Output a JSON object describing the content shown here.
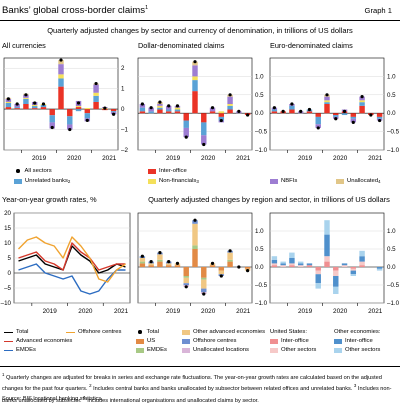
{
  "header": {
    "title": "Banks’ global cross-border claims",
    "title_note": "1",
    "graph_label": "Graph 1"
  },
  "top_subtitle": "Quarterly adjusted changes by sector and currency of denomination, in trillions of US dollars",
  "bottom_subtitle": "Quarterly adjusted changes by region and sector, in trillions of US dollars",
  "colors": {
    "inter_office": "#ea3326",
    "unrelated_banks": "#5aa2d6",
    "non_financials": "#f4e05a",
    "nbfis": "#9d7dd2",
    "unallocated": "#e1c688",
    "total_line": "#000000",
    "advanced_line": "#d4382b",
    "emde_line": "#2c6cc1",
    "offshore_line": "#f0a330",
    "us": "#e28a45",
    "emdes_bar": "#a8c985",
    "other_advanced": "#f0c783",
    "offshore_bar": "#6e8fd1",
    "unalloc_loc": "#d9b5d8",
    "us_interoffice": "#f08f91",
    "us_other": "#f6c9c8",
    "oth_interoffice": "#4f90cc",
    "oth_other": "#a9d3ed"
  },
  "footnotes": [
    {
      "marker": "1",
      "text": "Quarterly changes are adjusted for breaks in series and exchange rate fluctuations. The year-on-year growth rates are calculated based on the adjusted changes for the past four quarters."
    },
    {
      "marker": "2",
      "text": "Includes central banks and banks unallocated by subsector between related offices and unrelated banks."
    },
    {
      "marker": "3",
      "text": "Includes non-banks unallocated by subsector."
    },
    {
      "marker": "4",
      "text": "Includes international organisations and unallocated claims by sector."
    }
  ],
  "source": "Source: BIS locational banking statistics.",
  "top_legend": [
    {
      "key": "all_sectors",
      "label": "All sectors",
      "note": "",
      "kind": "dot",
      "color": "#000000"
    },
    {
      "key": "inter_office",
      "label": "Inter-office",
      "note": "",
      "kind": "swatch",
      "color": "#ea3326"
    },
    {
      "key": "unrelated",
      "label": "Unrelated banks",
      "note": "2",
      "kind": "swatch",
      "color": "#5aa2d6"
    },
    {
      "key": "nonfin",
      "label": "Non-financials",
      "note": "3",
      "kind": "swatch",
      "color": "#f4e05a"
    },
    {
      "key": "nbfis",
      "label": "NBFIs",
      "note": "",
      "kind": "swatch",
      "color": "#9d7dd2"
    },
    {
      "key": "unalloc",
      "label": "Unallocated",
      "note": "4",
      "kind": "swatch",
      "color": "#e1c688"
    }
  ],
  "bl_legend": [
    {
      "label": "Total",
      "kind": "line",
      "color": "#000000"
    },
    {
      "label": "Offshore centres",
      "kind": "line",
      "color": "#f0a330"
    },
    {
      "label": "Advanced economies",
      "kind": "line",
      "color": "#d4382b"
    },
    {
      "label": "EMDEs",
      "kind": "line",
      "color": "#2c6cc1"
    }
  ],
  "bm_legend": [
    {
      "label": "Total",
      "kind": "dot",
      "color": "#000000"
    },
    {
      "label": "Other advanced economies",
      "kind": "swatch",
      "color": "#f0c783"
    },
    {
      "label": "US",
      "kind": "swatch",
      "color": "#e28a45"
    },
    {
      "label": "Offshore centres",
      "kind": "swatch",
      "color": "#6e8fd1"
    },
    {
      "label": "EMDEs",
      "kind": "swatch",
      "color": "#a8c985"
    },
    {
      "label": "Unallocated locations",
      "kind": "swatch",
      "color": "#d9b5d8"
    }
  ],
  "br_legend": {
    "us_header": "United States:",
    "other_header": "Other economies:",
    "items": [
      {
        "label": "Inter-office",
        "color": "#f08f91"
      },
      {
        "label": "Other sectors",
        "color": "#f6c9c8"
      },
      {
        "label": "Inter-office",
        "color": "#4f90cc"
      },
      {
        "label": "Other sectors",
        "color": "#a9d3ed"
      }
    ]
  },
  "chart_data": [
    {
      "id": "all_currencies",
      "type": "bar",
      "title": "All currencies",
      "stacked": true,
      "x": [
        "2018-Q3",
        "2018-Q4",
        "2019-Q1",
        "2019-Q2",
        "2019-Q3",
        "2019-Q4",
        "2020-Q1",
        "2020-Q2",
        "2020-Q3",
        "2020-Q4",
        "2021-Q1",
        "2021-Q2",
        "2021-Q3"
      ],
      "ylim": [
        -2,
        2.5
      ],
      "yticks": [
        -2,
        -1,
        0,
        1,
        2
      ],
      "ytick_labels": [
        "–2",
        "–1",
        "0",
        "1",
        "2"
      ],
      "year_labels": [
        "2019",
        "2020",
        "2021"
      ],
      "series": [
        {
          "name": "Inter-office",
          "key": "inter_office",
          "values": [
            0.1,
            0.05,
            0.25,
            0.05,
            0.1,
            -0.3,
            1.1,
            -0.35,
            0.1,
            -0.2,
            0.35,
            -0.05,
            -0.1
          ]
        },
        {
          "name": "Unrelated banks",
          "key": "unrelated_banks",
          "values": [
            0.2,
            0.05,
            0.25,
            0.1,
            0.1,
            -0.35,
            0.4,
            -0.4,
            -0.1,
            -0.25,
            0.3,
            0.0,
            -0.05
          ]
        },
        {
          "name": "Non-financials",
          "key": "non_financials",
          "values": [
            0.05,
            0.0,
            0.05,
            0.05,
            0.05,
            0.0,
            0.2,
            0.0,
            0.05,
            0.05,
            0.15,
            0.05,
            0.0
          ]
        },
        {
          "name": "NBFIs",
          "key": "nbfis",
          "values": [
            0.15,
            0.15,
            0.15,
            0.15,
            0.0,
            -0.3,
            0.5,
            -0.25,
            0.25,
            -0.15,
            0.4,
            0.05,
            -0.1
          ]
        },
        {
          "name": "Unallocated",
          "key": "unallocated",
          "values": [
            0.05,
            0.0,
            0.05,
            0.0,
            0.0,
            0.0,
            0.2,
            0.0,
            0.0,
            0.0,
            0.05,
            0.0,
            0.0
          ]
        }
      ],
      "total": {
        "name": "All sectors",
        "values": [
          0.5,
          0.25,
          0.7,
          0.3,
          0.25,
          -0.9,
          2.4,
          -1.0,
          0.3,
          -0.55,
          1.25,
          0.05,
          -0.25
        ]
      }
    },
    {
      "id": "dollar",
      "type": "bar",
      "title": "Dollar-denominated claims",
      "stacked": true,
      "x": [
        "2018-Q3",
        "2018-Q4",
        "2019-Q1",
        "2019-Q2",
        "2019-Q3",
        "2019-Q4",
        "2020-Q1",
        "2020-Q2",
        "2020-Q3",
        "2020-Q4",
        "2021-Q1",
        "2021-Q2",
        "2021-Q3"
      ],
      "ylim": [
        -1.0,
        1.5
      ],
      "yticks": [
        -1.0,
        -0.5,
        0.0,
        0.5,
        1.0
      ],
      "ytick_labels": [
        "–1.0",
        "–0.5",
        "0.0",
        "0.5",
        "1.0"
      ],
      "year_labels": [
        "2019",
        "2020",
        "2021"
      ],
      "series": [
        {
          "name": "Inter-office",
          "key": "inter_office",
          "values": [
            0.05,
            0.0,
            0.1,
            0.05,
            0.05,
            -0.2,
            0.6,
            -0.25,
            0.05,
            -0.1,
            0.1,
            0.0,
            -0.05
          ]
        },
        {
          "name": "Unrelated banks",
          "key": "unrelated_banks",
          "values": [
            0.1,
            0.05,
            0.05,
            0.05,
            0.05,
            -0.2,
            0.3,
            -0.35,
            0.0,
            -0.1,
            0.1,
            0.0,
            0.0
          ]
        },
        {
          "name": "Non-financials",
          "key": "non_financials",
          "values": [
            0.0,
            0.0,
            0.05,
            0.0,
            0.05,
            0.0,
            0.1,
            0.0,
            0.0,
            0.05,
            0.05,
            0.0,
            0.0
          ]
        },
        {
          "name": "NBFIs",
          "key": "nbfis",
          "values": [
            0.1,
            0.1,
            0.05,
            0.1,
            0.05,
            -0.25,
            0.3,
            -0.25,
            0.1,
            -0.05,
            0.2,
            0.05,
            0.0
          ]
        },
        {
          "name": "Unallocated",
          "key": "unallocated",
          "values": [
            0.0,
            0.0,
            0.05,
            0.0,
            0.0,
            0.0,
            0.1,
            0.0,
            0.0,
            0.0,
            0.05,
            0.0,
            0.0
          ]
        }
      ],
      "total": {
        "name": "All sectors",
        "values": [
          0.25,
          0.15,
          0.3,
          0.2,
          0.2,
          -0.65,
          1.4,
          -0.85,
          0.15,
          -0.2,
          0.5,
          0.05,
          -0.05
        ]
      }
    },
    {
      "id": "euro",
      "type": "bar",
      "title": "Euro-denominated claims",
      "stacked": true,
      "x": [
        "2018-Q3",
        "2018-Q4",
        "2019-Q1",
        "2019-Q2",
        "2019-Q3",
        "2019-Q4",
        "2020-Q1",
        "2020-Q2",
        "2020-Q3",
        "2020-Q4",
        "2021-Q1",
        "2021-Q2",
        "2021-Q3"
      ],
      "ylim": [
        -1.0,
        1.5
      ],
      "yticks": [
        -1.0,
        -0.5,
        0.0,
        0.5,
        1.0
      ],
      "ytick_labels": [
        "–1.0",
        "–0.5",
        "0.0",
        "0.5",
        "1.0"
      ],
      "year_labels": [
        "2019",
        "2020",
        "2021"
      ],
      "series": [
        {
          "name": "Inter-office",
          "key": "inter_office",
          "values": [
            0.05,
            0.05,
            0.1,
            0.0,
            0.05,
            -0.1,
            0.25,
            -0.05,
            0.05,
            -0.1,
            0.2,
            -0.05,
            -0.1
          ]
        },
        {
          "name": "Unrelated banks",
          "key": "unrelated_banks",
          "values": [
            0.05,
            0.0,
            0.1,
            0.0,
            0.05,
            -0.2,
            0.05,
            -0.05,
            -0.05,
            -0.05,
            0.1,
            0.0,
            -0.05
          ]
        },
        {
          "name": "Non-financials",
          "key": "non_financials",
          "values": [
            0.0,
            0.0,
            0.0,
            0.0,
            0.0,
            0.0,
            0.05,
            0.0,
            0.0,
            0.0,
            0.05,
            0.0,
            0.0
          ]
        },
        {
          "name": "NBFIs",
          "key": "nbfis",
          "values": [
            0.05,
            0.0,
            0.05,
            0.05,
            0.0,
            -0.1,
            0.1,
            -0.05,
            0.05,
            -0.1,
            0.1,
            0.0,
            -0.05
          ]
        },
        {
          "name": "Unallocated",
          "key": "unallocated",
          "values": [
            0.0,
            0.0,
            0.0,
            0.0,
            0.0,
            0.0,
            0.05,
            0.0,
            0.0,
            0.0,
            0.0,
            0.0,
            0.0
          ]
        }
      ],
      "total": {
        "name": "All sectors",
        "values": [
          0.15,
          0.05,
          0.25,
          0.05,
          0.1,
          -0.4,
          0.5,
          -0.15,
          0.05,
          -0.25,
          0.45,
          -0.05,
          -0.2
        ]
      }
    },
    {
      "id": "yoy",
      "type": "line",
      "title": "Year-on-year growth rates, %",
      "x": [
        "2018-Q3",
        "2018-Q4",
        "2019-Q1",
        "2019-Q2",
        "2019-Q3",
        "2019-Q4",
        "2020-Q1",
        "2020-Q2",
        "2020-Q3",
        "2020-Q4",
        "2021-Q1",
        "2021-Q2",
        "2021-Q3"
      ],
      "ylim": [
        -10,
        20
      ],
      "yticks": [
        -10,
        -5,
        0,
        5,
        10,
        15,
        20
      ],
      "ytick_labels": [
        "–10",
        "–5",
        "0",
        "5",
        "10",
        "15",
        "20"
      ],
      "year_labels": [
        "2019",
        "2020",
        "2021"
      ],
      "series": [
        {
          "name": "Total",
          "values": [
            4,
            5,
            6,
            3,
            2,
            1,
            9,
            6,
            4,
            0,
            1,
            3,
            2
          ]
        },
        {
          "name": "Advanced economies",
          "values": [
            5,
            6,
            7,
            4,
            3,
            1,
            10,
            7,
            5,
            1,
            2,
            3,
            3
          ]
        },
        {
          "name": "EMDEs",
          "values": [
            1,
            2,
            3,
            0,
            -1,
            -2,
            -1,
            -6,
            -7,
            -6,
            -2,
            1,
            1
          ]
        },
        {
          "name": "Offshore centres",
          "values": [
            8,
            11,
            12,
            10,
            9,
            5,
            12,
            9,
            5,
            -2,
            -3,
            1,
            3
          ]
        }
      ]
    },
    {
      "id": "region_left",
      "type": "bar",
      "stacked": true,
      "x": [
        "2018-Q3",
        "2018-Q4",
        "2019-Q1",
        "2019-Q2",
        "2019-Q3",
        "2019-Q4",
        "2020-Q1",
        "2020-Q2",
        "2020-Q3",
        "2020-Q4",
        "2021-Q1",
        "2021-Q2",
        "2021-Q3"
      ],
      "ylim": [
        -1.0,
        1.5
      ],
      "yticks": [
        -1.0,
        -0.5,
        0.0,
        0.5,
        1.0
      ],
      "ytick_labels": [
        "–1.0",
        "–0.5",
        "0.0",
        "0.5",
        "1.0"
      ],
      "year_labels": [
        "2019",
        "2020",
        "2021"
      ],
      "series": [
        {
          "name": "US",
          "key": "us",
          "values": [
            0.1,
            0.05,
            0.15,
            0.05,
            0.05,
            -0.25,
            0.5,
            -0.3,
            0.05,
            -0.1,
            0.15,
            0.0,
            -0.05
          ]
        },
        {
          "name": "EMDEs",
          "key": "emdes_bar",
          "values": [
            0.05,
            0.0,
            0.05,
            0.0,
            0.0,
            -0.05,
            0.1,
            -0.05,
            0.0,
            0.0,
            0.05,
            0.0,
            0.0
          ]
        },
        {
          "name": "Other advanced economies",
          "key": "other_advanced",
          "values": [
            0.1,
            0.05,
            0.15,
            0.05,
            0.05,
            -0.15,
            0.6,
            -0.25,
            0.05,
            -0.1,
            0.2,
            0.0,
            -0.05
          ]
        },
        {
          "name": "Offshore centres",
          "key": "offshore_bar",
          "values": [
            0.05,
            0.05,
            0.05,
            0.05,
            0.0,
            -0.05,
            0.1,
            -0.1,
            0.0,
            -0.05,
            0.05,
            0.0,
            0.0
          ]
        },
        {
          "name": "Unallocated locations",
          "key": "unalloc_loc",
          "values": [
            0.0,
            0.0,
            0.0,
            0.0,
            0.0,
            -0.05,
            0.0,
            -0.05,
            0.0,
            0.0,
            0.0,
            0.0,
            0.0
          ]
        }
      ],
      "total": {
        "name": "Total",
        "values": [
          0.3,
          0.15,
          0.4,
          0.15,
          0.1,
          -0.55,
          1.3,
          -0.75,
          0.1,
          -0.25,
          0.45,
          0.0,
          -0.1
        ]
      }
    },
    {
      "id": "region_right",
      "type": "bar",
      "stacked": true,
      "x": [
        "2018-Q3",
        "2018-Q4",
        "2019-Q1",
        "2019-Q2",
        "2019-Q3",
        "2019-Q4",
        "2020-Q1",
        "2020-Q2",
        "2020-Q3",
        "2020-Q4",
        "2021-Q1",
        "2021-Q2",
        "2021-Q3"
      ],
      "ylim": [
        -1.0,
        1.5
      ],
      "yticks": [
        -1.0,
        -0.5,
        0.0,
        0.5,
        1.0
      ],
      "ytick_labels": [
        "–1.0",
        "–0.5",
        "0.0",
        "0.5",
        "1.0"
      ],
      "year_labels": [
        "2019",
        "2020",
        "2021"
      ],
      "series": [
        {
          "name": "US Inter-office",
          "key": "us_interoffice",
          "values": [
            0.05,
            0.0,
            0.05,
            0.0,
            0.05,
            -0.1,
            0.15,
            -0.1,
            0.0,
            -0.05,
            0.05,
            0.0,
            0.0
          ]
        },
        {
          "name": "US Other sectors",
          "key": "us_other",
          "values": [
            0.05,
            0.05,
            0.05,
            0.05,
            0.0,
            -0.1,
            0.15,
            -0.15,
            0.05,
            -0.05,
            0.1,
            0.0,
            0.0
          ]
        },
        {
          "name": "Other economies Inter-office",
          "key": "oth_interoffice",
          "values": [
            0.1,
            0.05,
            0.15,
            0.05,
            0.05,
            -0.25,
            0.6,
            -0.3,
            0.05,
            -0.1,
            0.15,
            0.0,
            -0.05
          ]
        },
        {
          "name": "Other economies Other sectors",
          "key": "oth_other",
          "values": [
            0.1,
            0.05,
            0.15,
            0.05,
            0.0,
            -0.15,
            0.4,
            -0.2,
            0.0,
            -0.05,
            0.15,
            0.0,
            -0.05
          ]
        }
      ]
    }
  ]
}
